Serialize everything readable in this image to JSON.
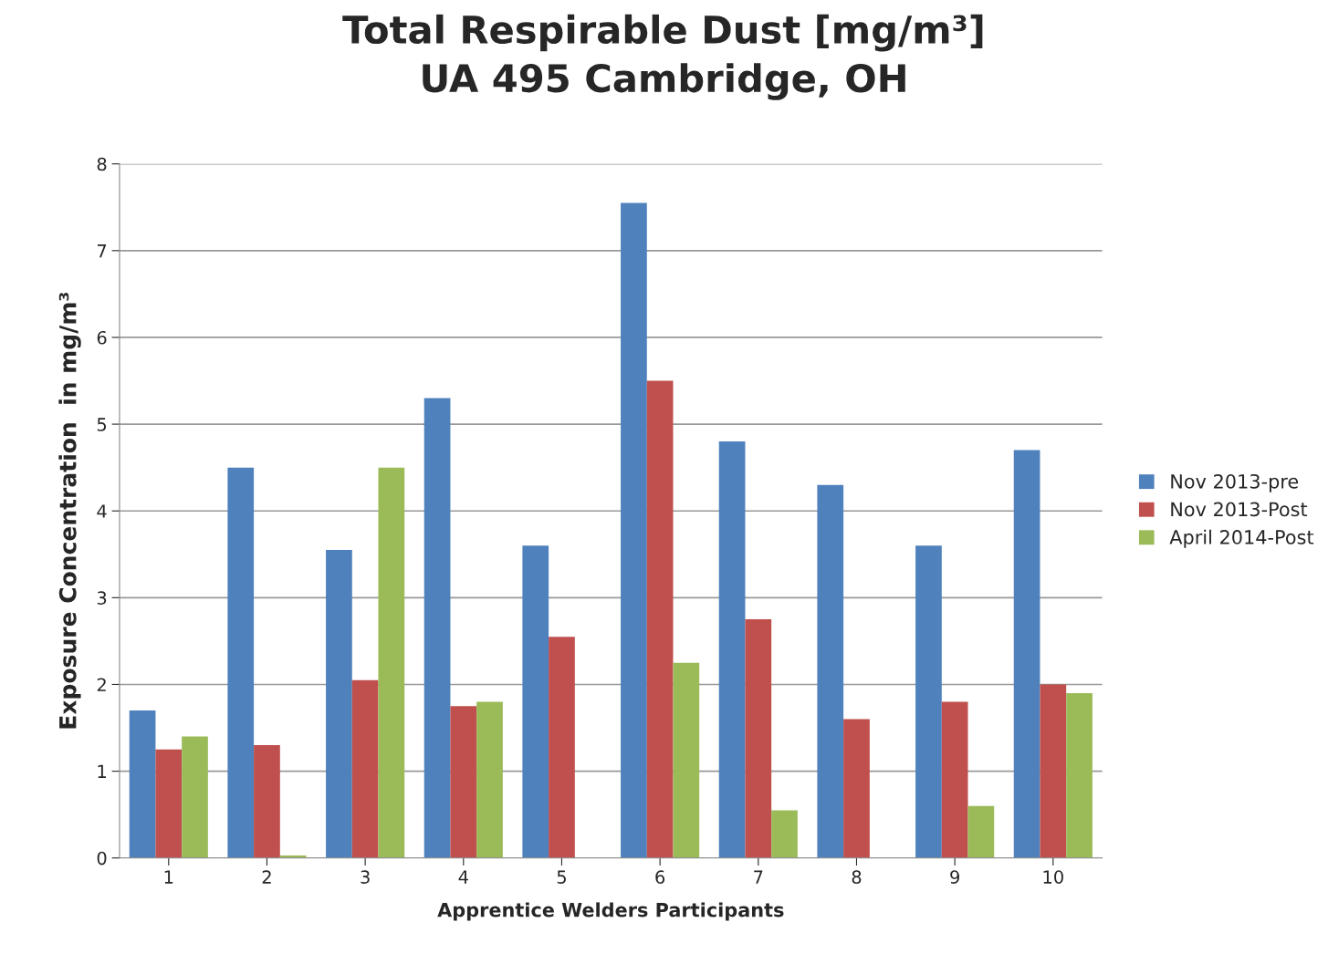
{
  "chart_data": {
    "type": "bar",
    "title": "Total Respirable Dust [mg/m³]\nUA 495 Cambridge, OH",
    "xlabel": "Apprentice Welders Participants",
    "ylabel": "Exposure Concentration  in mg/m³",
    "categories": [
      "1",
      "2",
      "3",
      "4",
      "5",
      "6",
      "7",
      "8",
      "9",
      "10"
    ],
    "series": [
      {
        "name": "Nov 2013-pre",
        "color": "#4f81bd",
        "values": [
          1.7,
          4.5,
          3.55,
          5.3,
          3.6,
          7.55,
          4.8,
          4.3,
          3.6,
          4.7
        ]
      },
      {
        "name": "Nov 2013-Post",
        "color": "#c0504d",
        "values": [
          1.25,
          1.3,
          2.05,
          1.75,
          2.55,
          5.5,
          2.75,
          1.6,
          1.8,
          2.0
        ]
      },
      {
        "name": "April 2014-Post",
        "color": "#9bbb59",
        "values": [
          1.4,
          0.03,
          4.5,
          1.8,
          0,
          2.25,
          0.55,
          0,
          0.6,
          1.9
        ]
      }
    ],
    "ylim": [
      0,
      8
    ],
    "yticks": [
      0,
      1,
      2,
      3,
      4,
      5,
      6,
      7,
      8
    ],
    "grid": "y",
    "legend": "right"
  }
}
